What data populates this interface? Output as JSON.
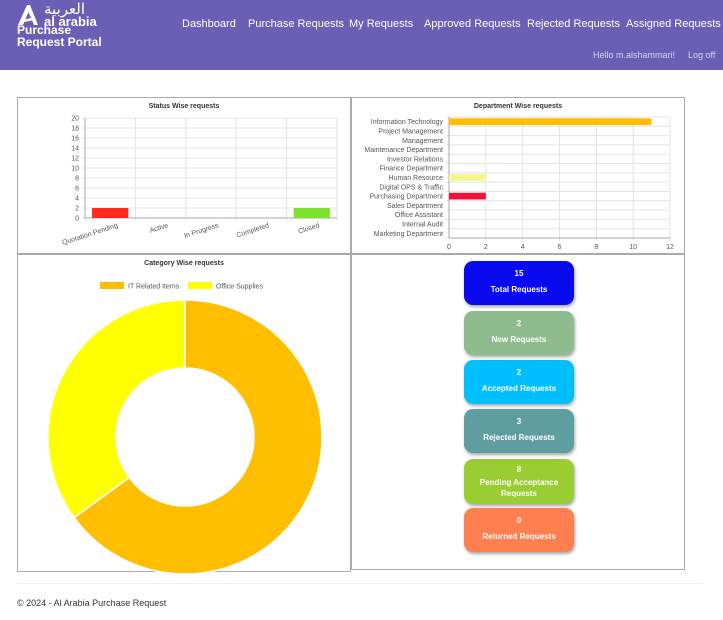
{
  "brand": {
    "arabic": "العربية",
    "english": "al arabia",
    "title_line1": "Purchase",
    "title_line2": "Request Portal"
  },
  "nav": [
    {
      "label": "Dashboard"
    },
    {
      "label": "Purchase Requests"
    },
    {
      "label": "My Requests"
    },
    {
      "label": "Approved Requests"
    },
    {
      "label": "Rejected Requests"
    },
    {
      "label": "Assigned Requests"
    }
  ],
  "user": {
    "greeting": "Hello m.alshammari!",
    "logoff": "Log off"
  },
  "colors": {
    "header_bg": "#6a5fb5",
    "it_related": "#ffbf00",
    "office_supplies": "#ffff00"
  },
  "chart_data": [
    {
      "type": "bar",
      "title": "Status Wise requests",
      "categories": [
        "Quotation Pending",
        "Active",
        "In Progress",
        "Completed",
        "Closed"
      ],
      "values": [
        2,
        0,
        0,
        0,
        2
      ],
      "colors": [
        "#ff2a1a",
        null,
        null,
        null,
        "#7fe22a"
      ],
      "ylim": [
        0,
        20
      ],
      "yticks": [
        "20",
        "18",
        "16",
        "14",
        "12",
        "10",
        "8",
        "6",
        "4",
        "2",
        "0"
      ],
      "grid": true
    },
    {
      "type": "bar",
      "orientation": "horizontal",
      "title": "Department Wise requests",
      "categories": [
        "Information Technology",
        "Project Management",
        "Management",
        "Maintenance Department",
        "Investor Relations",
        "Finance Department",
        "Human Resource",
        "Digital OPS & Traffic",
        "Purchasing Department",
        "Sales Department",
        "Office Assistant",
        "Internal Audit",
        "Marketing Department"
      ],
      "values": [
        11,
        0,
        0,
        0,
        0,
        0,
        2,
        0,
        2,
        0,
        0,
        0,
        0
      ],
      "colors": [
        "#ffbf00",
        null,
        null,
        null,
        null,
        null,
        "#f3f78a",
        null,
        "#f0103a",
        null,
        null,
        null,
        null
      ],
      "xlim": [
        0,
        12
      ],
      "xticks": [
        "0",
        "2",
        "4",
        "6",
        "8",
        "10",
        "12"
      ],
      "grid": true
    },
    {
      "type": "pie",
      "subtype": "doughnut",
      "title": "Category Wise requests",
      "legend_position": "top",
      "series": [
        {
          "name": "IT Related Items",
          "value": 13,
          "color": "#ffbf00"
        },
        {
          "name": "Office Supplies",
          "value": 7,
          "color": "#ffff00"
        }
      ]
    }
  ],
  "summary": [
    {
      "value": "15",
      "label": "Total Requests",
      "color": "#0a0aef"
    },
    {
      "value": "2",
      "label": "New Requests",
      "color": "#8fbc8f"
    },
    {
      "value": "2",
      "label": "Accepted Requests",
      "color": "#00bfff"
    },
    {
      "value": "3",
      "label": "Rejected Requests",
      "color": "#5f9ea0"
    },
    {
      "value": "8",
      "label": "Pending Acceptance Requests",
      "color": "#9acd32"
    },
    {
      "value": "0",
      "label": "Returned Requests",
      "color": "#ff7f50"
    }
  ],
  "footer": "© 2024 - Al Arabia Purchase Request"
}
